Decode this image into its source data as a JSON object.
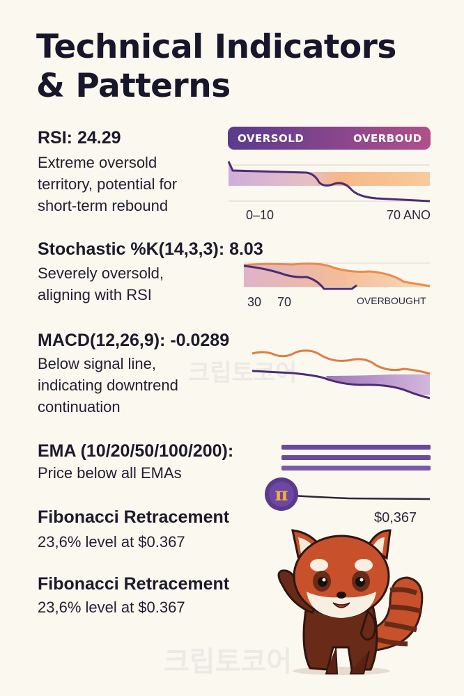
{
  "title": {
    "line1": "Technical Indicators",
    "line2": "& Patterns"
  },
  "rsi": {
    "heading": "RSI: 24.29",
    "desc": [
      "Extreme oversold",
      "territory, potential for",
      "short-term rebound"
    ],
    "pill_left": "OVERSOLD",
    "pill_right": "OVERBOUD",
    "tick_left": "0–10",
    "tick_right": "70 ANO"
  },
  "stochastic": {
    "heading": "Stochastic %K(14,3,3): 8.03",
    "desc": [
      "Severely oversold,",
      "aligning with RSI"
    ],
    "tick_1": "30",
    "tick_2": "70",
    "tick_right": "OVERBOUGHT"
  },
  "macd": {
    "heading": "MACD(12,26,9): -0.0289",
    "desc": [
      "Below signal line,",
      "indicating downtrend",
      "continuation"
    ]
  },
  "ema": {
    "heading": "EMA (10/20/50/100/200):",
    "desc": "Price below all EMAs",
    "price_label": "$0,367"
  },
  "fib1": {
    "heading": "Fibonacci Retracement",
    "desc": "23,6% level at $0.367"
  },
  "fib2": {
    "heading": "Fibonacci Retracement",
    "desc": "23,6% level at $0.367"
  },
  "watermark": "크립토코어",
  "colors": {
    "purple": "#5b3a8c",
    "orange": "#f0a25e",
    "background": "#fbf8f0",
    "panda_red": "#c8502a"
  }
}
